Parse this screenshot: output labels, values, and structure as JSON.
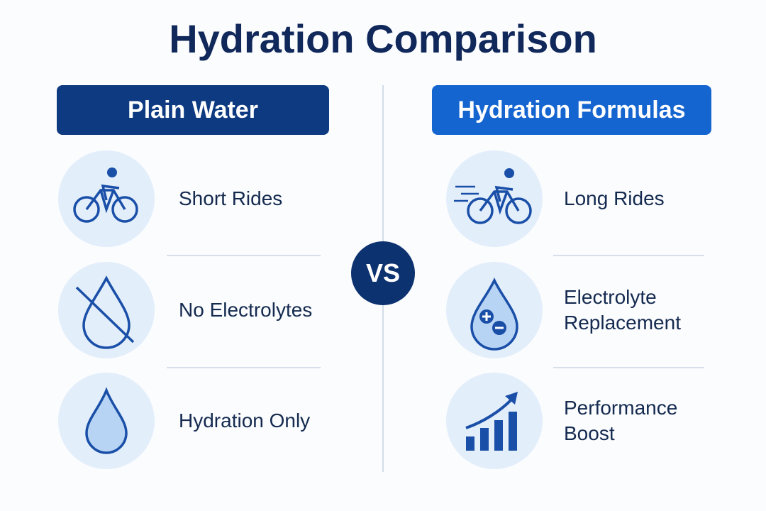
{
  "title": "Hydration Comparison",
  "vs": "VS",
  "left": {
    "heading": "Plain Water",
    "items": [
      "Short Rides",
      "No Electrolytes",
      "Hydration Only"
    ]
  },
  "right": {
    "heading": "Hydration Formulas",
    "items": [
      "Long Rides",
      "Electrolyte Replacement",
      "Performance Boost"
    ]
  }
}
